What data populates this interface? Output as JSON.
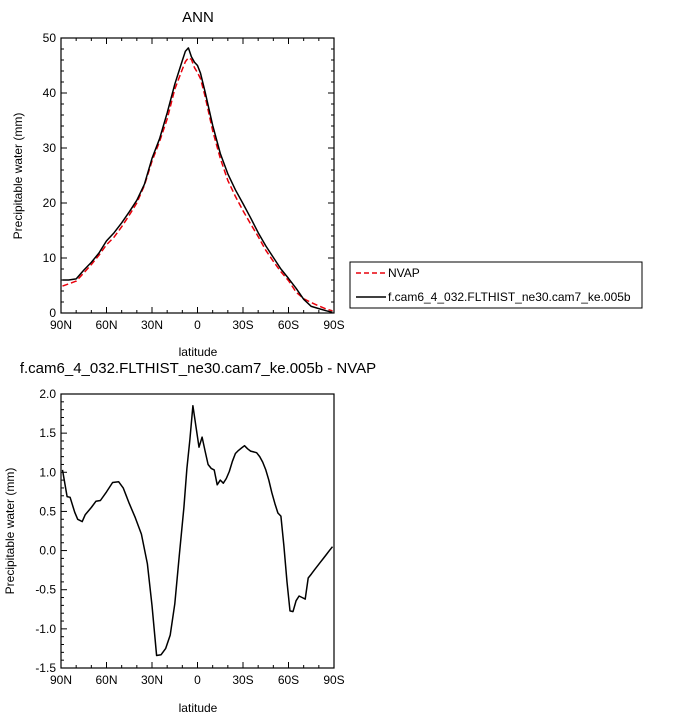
{
  "chart_data": [
    {
      "type": "line",
      "title": "ANN",
      "xlabel": "latitude",
      "ylabel": "Precipitable water (mm)",
      "xlim": [
        90,
        -90
      ],
      "ylim": [
        0,
        50
      ],
      "x_ticks": [
        90,
        60,
        30,
        0,
        -30,
        -60,
        -90
      ],
      "x_tick_labels": [
        "90N",
        "60N",
        "30N",
        "0",
        "30S",
        "60S",
        "90S"
      ],
      "y_ticks": [
        0,
        10,
        20,
        30,
        40,
        50
      ],
      "y_tick_labels": [
        "0",
        "10",
        "20",
        "30",
        "40",
        "50"
      ],
      "grid": false,
      "legend_position": "right, outside plot",
      "series": [
        {
          "name": "NVAP",
          "color": "#e8000b",
          "dash": "dashed",
          "x": [
            89,
            85,
            80,
            75,
            70,
            65,
            60,
            55,
            50,
            45,
            40,
            35,
            30,
            25,
            20,
            15,
            10,
            8,
            6,
            4,
            2,
            0,
            -2,
            -5,
            -10,
            -15,
            -20,
            -25,
            -30,
            -35,
            -40,
            -45,
            -50,
            -55,
            -60,
            -65,
            -70,
            -75,
            -80,
            -85,
            -89
          ],
          "y": [
            4.9,
            5.3,
            5.8,
            7.3,
            8.8,
            10.5,
            12.4,
            13.8,
            15.7,
            17.8,
            20.0,
            23.2,
            27.6,
            31.2,
            35.3,
            40.7,
            44.3,
            45.7,
            46.4,
            46.1,
            44.6,
            43.7,
            42.6,
            39.4,
            33.1,
            28.1,
            24.1,
            21.2,
            18.6,
            16.2,
            13.9,
            11.4,
            9.4,
            7.5,
            5.9,
            3.8,
            2.6,
            1.9,
            1.3,
            0.7,
            0.4
          ]
        },
        {
          "name": "f.cam6_4_032.FLTHIST_ne30.cam7_ke.005b",
          "color": "#000000",
          "dash": "solid",
          "x": [
            89,
            85,
            80,
            75,
            70,
            65,
            60,
            55,
            50,
            45,
            40,
            35,
            30,
            25,
            20,
            15,
            10,
            8,
            6,
            4,
            2,
            0,
            -2,
            -5,
            -10,
            -15,
            -20,
            -25,
            -30,
            -35,
            -40,
            -45,
            -50,
            -55,
            -60,
            -65,
            -70,
            -75,
            -80,
            -85,
            -89
          ],
          "y": [
            6.0,
            6.0,
            6.2,
            7.8,
            9.2,
            10.9,
            13.1,
            14.6,
            16.4,
            18.4,
            20.5,
            23.4,
            28.1,
            31.7,
            36.4,
            41.6,
            45.9,
            47.6,
            48.2,
            46.6,
            45.6,
            45.0,
            43.6,
            40.2,
            34.1,
            29.0,
            25.3,
            22.4,
            19.9,
            17.3,
            14.6,
            12.2,
            10.1,
            8.0,
            6.3,
            4.5,
            2.5,
            1.2,
            0.8,
            0.4,
            0.1
          ]
        }
      ]
    },
    {
      "type": "line",
      "title": "f.cam6_4_032.FLTHIST_ne30.cam7_ke.005b - NVAP",
      "xlabel": "latitude",
      "ylabel": "Precipitable water (mm)",
      "xlim": [
        90,
        -90
      ],
      "ylim": [
        -1.5,
        2.0
      ],
      "x_ticks": [
        90,
        60,
        30,
        0,
        -30,
        -60,
        -90
      ],
      "x_tick_labels": [
        "90N",
        "60N",
        "30N",
        "0",
        "30S",
        "60S",
        "90S"
      ],
      "y_ticks": [
        -1.5,
        -1.0,
        -0.5,
        0.0,
        0.5,
        1.0,
        1.5,
        2.0
      ],
      "y_tick_labels": [
        "-1.5",
        "-1.0",
        "-0.5",
        "0.0",
        "0.5",
        "1.0",
        "1.5",
        "2.0"
      ],
      "grid": false,
      "series": [
        {
          "color": "#000000",
          "dash": "solid",
          "x": [
            89,
            86,
            84,
            81,
            79,
            76,
            74,
            70,
            67,
            64,
            60,
            56,
            52,
            49,
            45,
            41,
            37,
            33,
            30,
            27,
            24,
            21,
            18,
            15,
            12,
            9,
            7,
            5,
            3,
            1,
            -1,
            -3,
            -5,
            -7,
            -9,
            -11,
            -13,
            -15,
            -17,
            -19,
            -21,
            -23,
            -25,
            -27,
            -29,
            -31,
            -33,
            -35,
            -37,
            -39,
            -41,
            -43,
            -45,
            -47,
            -49,
            -51,
            -53,
            -55,
            -57,
            -59,
            -61,
            -63,
            -65,
            -67,
            -69,
            -71,
            -73,
            -75,
            -77,
            -79,
            -81,
            -83,
            -85,
            -87,
            -89
          ],
          "y": [
            1.03,
            0.69,
            0.68,
            0.49,
            0.4,
            0.37,
            0.46,
            0.55,
            0.63,
            0.64,
            0.75,
            0.87,
            0.88,
            0.8,
            0.6,
            0.42,
            0.21,
            -0.17,
            -0.7,
            -1.34,
            -1.33,
            -1.25,
            -1.08,
            -0.68,
            -0.06,
            0.55,
            1.05,
            1.42,
            1.85,
            1.58,
            1.32,
            1.45,
            1.27,
            1.1,
            1.05,
            1.03,
            0.84,
            0.9,
            0.86,
            0.92,
            1.01,
            1.14,
            1.24,
            1.28,
            1.31,
            1.34,
            1.3,
            1.27,
            1.26,
            1.25,
            1.2,
            1.13,
            1.03,
            0.9,
            0.74,
            0.6,
            0.48,
            0.44,
            0.06,
            -0.4,
            -0.77,
            -0.78,
            -0.64,
            -0.58,
            -0.6,
            -0.62,
            -0.35,
            -0.3,
            -0.25,
            -0.2,
            -0.15,
            -0.1,
            -0.05,
            0.0,
            0.05
          ]
        }
      ]
    }
  ]
}
